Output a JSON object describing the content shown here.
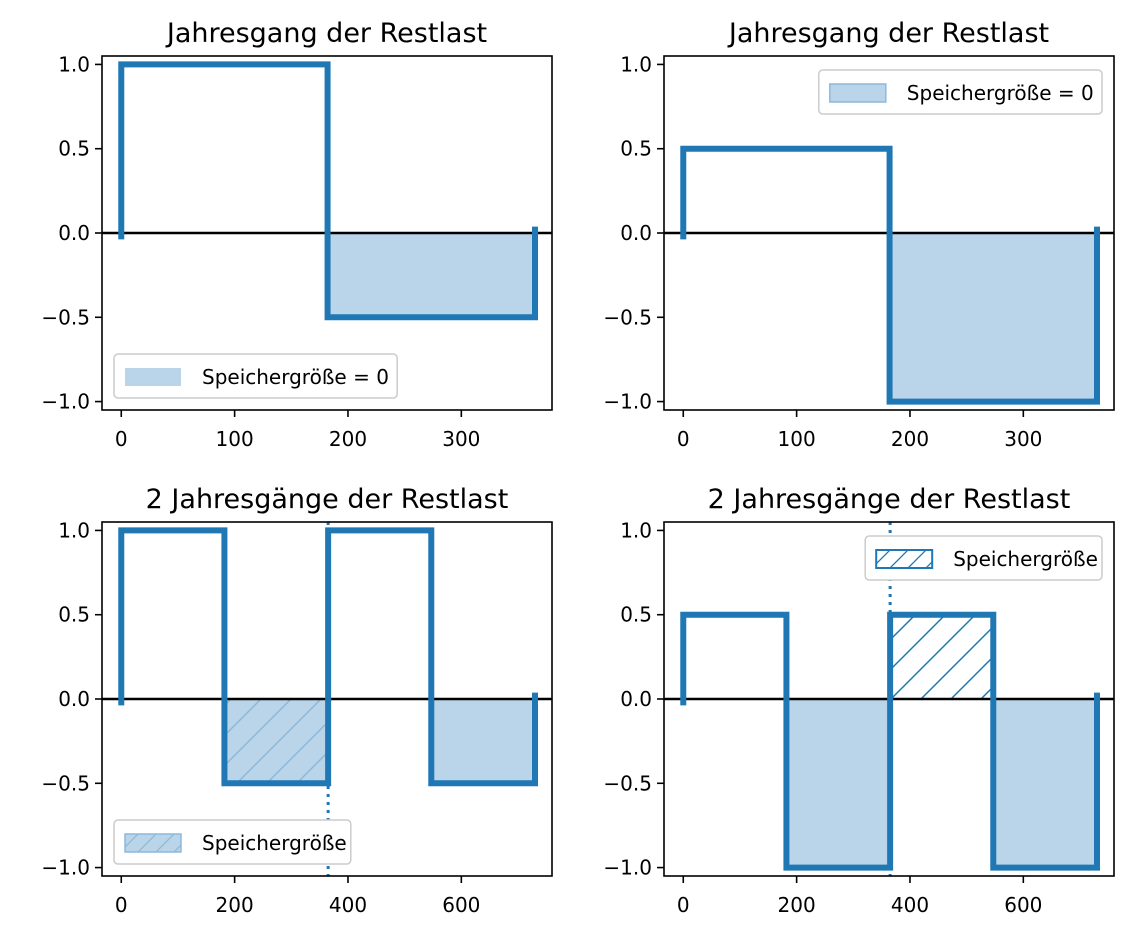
{
  "colors": {
    "series": "#1f77b4",
    "fill": "#bad5e9",
    "zero_line": "#000000",
    "axes": "#000000",
    "legend_border": "#cccccc"
  },
  "chart_data": [
    {
      "type": "line",
      "title": "Jahresgang der Restlast",
      "xlim": [
        -17,
        380
      ],
      "ylim": [
        -1.05,
        1.05
      ],
      "xticks": [
        0,
        100,
        200,
        300
      ],
      "xtick_labels": [
        "0",
        "100",
        "200",
        "300"
      ],
      "yticks": [
        -1.0,
        -0.5,
        0.0,
        0.5,
        1.0
      ],
      "ytick_labels": [
        "−1.0",
        "−0.5",
        "0.0",
        "0.5",
        "1.0"
      ],
      "series": [
        {
          "x": [
            0,
            0,
            182,
            182,
            365,
            365
          ],
          "y": [
            -0.02,
            1.0,
            1.0,
            -0.5,
            -0.5,
            0.02
          ]
        }
      ],
      "fill_regions": [
        {
          "x0": 182,
          "x1": 365,
          "y0": -0.5,
          "y1": 0,
          "style": "solid"
        }
      ],
      "vline": null,
      "legend": {
        "label": "Speichergröße = 0",
        "placement": "lower-left",
        "swatch": "solid"
      }
    },
    {
      "type": "line",
      "title": "Jahresgang der Restlast",
      "xlim": [
        -17,
        380
      ],
      "ylim": [
        -1.05,
        1.05
      ],
      "xticks": [
        0,
        100,
        200,
        300
      ],
      "xtick_labels": [
        "0",
        "100",
        "200",
        "300"
      ],
      "yticks": [
        -1.0,
        -0.5,
        0.0,
        0.5,
        1.0
      ],
      "ytick_labels": [
        "−1.0",
        "−0.5",
        "0.0",
        "0.5",
        "1.0"
      ],
      "series": [
        {
          "x": [
            0,
            0,
            182,
            182,
            365,
            365
          ],
          "y": [
            -0.02,
            0.5,
            0.5,
            -1.0,
            -1.0,
            0.02
          ]
        }
      ],
      "fill_regions": [
        {
          "x0": 182,
          "x1": 365,
          "y0": -1.0,
          "y1": 0,
          "style": "solid"
        }
      ],
      "vline": null,
      "legend": {
        "label": "Speichergröße = 0",
        "placement": "upper-right",
        "swatch": "solid-outline"
      }
    },
    {
      "type": "line",
      "title": "2 Jahresgänge der Restlast",
      "xlim": [
        -34,
        760
      ],
      "ylim": [
        -1.05,
        1.05
      ],
      "xticks": [
        0,
        200,
        400,
        600
      ],
      "xtick_labels": [
        "0",
        "200",
        "400",
        "600"
      ],
      "yticks": [
        -1.0,
        -0.5,
        0.0,
        0.5,
        1.0
      ],
      "ytick_labels": [
        "−1.0",
        "−0.5",
        "0.0",
        "0.5",
        "1.0"
      ],
      "series": [
        {
          "x": [
            0,
            0,
            182,
            182,
            365,
            365,
            547,
            547,
            730,
            730
          ],
          "y": [
            -0.02,
            1.0,
            1.0,
            -0.5,
            -0.5,
            1.0,
            1.0,
            -0.5,
            -0.5,
            0.02
          ]
        }
      ],
      "fill_regions": [
        {
          "x0": 182,
          "x1": 365,
          "y0": -0.5,
          "y1": 0,
          "style": "hatched-light"
        },
        {
          "x0": 547,
          "x1": 730,
          "y0": -0.5,
          "y1": 0,
          "style": "solid"
        }
      ],
      "vline": {
        "x": 365
      },
      "legend": {
        "label": "Speichergröße",
        "placement": "lower-left",
        "swatch": "hatched-light"
      }
    },
    {
      "type": "line",
      "title": "2 Jahresgänge der Restlast",
      "xlim": [
        -34,
        760
      ],
      "ylim": [
        -1.05,
        1.05
      ],
      "xticks": [
        0,
        200,
        400,
        600
      ],
      "xtick_labels": [
        "0",
        "200",
        "400",
        "600"
      ],
      "yticks": [
        -1.0,
        -0.5,
        0.0,
        0.5,
        1.0
      ],
      "ytick_labels": [
        "−1.0",
        "−0.5",
        "0.0",
        "0.5",
        "1.0"
      ],
      "series": [
        {
          "x": [
            0,
            0,
            182,
            182,
            365,
            365,
            547,
            547,
            730,
            730
          ],
          "y": [
            -0.02,
            0.5,
            0.5,
            -1.0,
            -1.0,
            0.5,
            0.5,
            -1.0,
            -1.0,
            0.02
          ]
        }
      ],
      "fill_regions": [
        {
          "x0": 182,
          "x1": 365,
          "y0": -1.0,
          "y1": 0,
          "style": "solid"
        },
        {
          "x0": 365,
          "x1": 547,
          "y0": 0,
          "y1": 0.5,
          "style": "hatched-dark"
        },
        {
          "x0": 547,
          "x1": 730,
          "y0": -1.0,
          "y1": 0,
          "style": "solid"
        }
      ],
      "vline": {
        "x": 365
      },
      "legend": {
        "label": "Speichergröße",
        "placement": "upper-right",
        "swatch": "hatched-dark"
      }
    }
  ]
}
